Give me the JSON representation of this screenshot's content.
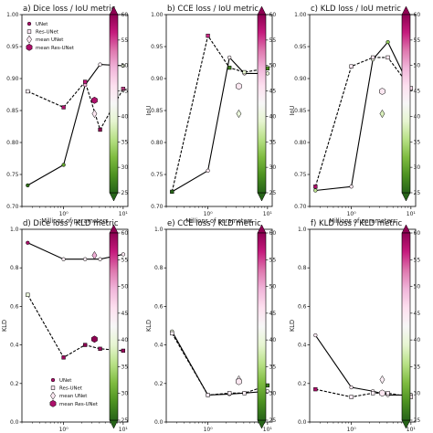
{
  "colorbar": {
    "ticks": [
      25,
      30,
      35,
      40,
      45,
      50,
      55,
      60
    ],
    "range": [
      25,
      60
    ],
    "colors_low_to_high": [
      "#276419",
      "#4d9221",
      "#7fbc41",
      "#b8e186",
      "#e6f5d0",
      "#f7f7f7",
      "#fde0ef",
      "#f1b6da",
      "#de77ae",
      "#c51b7d",
      "#8e0152"
    ]
  },
  "legend": {
    "entries": [
      "UNet",
      "Res-UNet",
      "mean UNet",
      "mean Res-UNet"
    ]
  },
  "chart_data": [
    {
      "type": "line",
      "title": "a) Dice loss / IoU metric",
      "xlabel": "Millions of parameters",
      "ylabel": "",
      "xscale": "log",
      "xlim": [
        0.2,
        12
      ],
      "ylim": [
        0.7,
        1.0
      ],
      "yticks": [
        "0.70",
        "0.75",
        "0.80",
        "0.85",
        "0.90",
        "0.95",
        "1.00"
      ],
      "xticks": [
        {
          "v": 1,
          "label": "10⁰"
        },
        {
          "v": 10,
          "label": "10¹"
        }
      ],
      "legend_placement": "top-left",
      "series": [
        {
          "name": "UNet",
          "style": "solid",
          "marker": "circle",
          "x": [
            0.25,
            1,
            2.3,
            4.1,
            10
          ],
          "y": [
            0.733,
            0.765,
            0.89,
            0.922,
            0.92
          ],
          "c": [
            26,
            30,
            50,
            44,
            40
          ]
        },
        {
          "name": "Res-UNet",
          "style": "dashed",
          "marker": "square",
          "x": [
            0.25,
            1,
            2.3,
            4.1,
            10
          ],
          "y": [
            0.88,
            0.855,
            0.895,
            0.82,
            0.884
          ],
          "c": [
            44,
            58,
            57,
            60,
            55
          ]
        },
        {
          "name": "mean UNet",
          "style": "none",
          "marker": "diamond",
          "x": [
            3.3
          ],
          "y": [
            0.845
          ],
          "c": [
            45
          ]
        },
        {
          "name": "mean Res-UNet",
          "style": "none",
          "marker": "hexagon",
          "x": [
            3.3
          ],
          "y": [
            0.866
          ],
          "c": [
            58
          ]
        }
      ]
    },
    {
      "type": "line",
      "title": "b) CCE loss / IoU metric",
      "xlabel": "Millions of parameters",
      "ylabel": "IoU",
      "xscale": "log",
      "xlim": [
        0.2,
        12
      ],
      "ylim": [
        0.7,
        1.0
      ],
      "yticks": [
        "0.70",
        "0.75",
        "0.80",
        "0.85",
        "0.90",
        "0.95",
        "1.00"
      ],
      "xticks": [
        {
          "v": 1,
          "label": "10⁰"
        },
        {
          "v": 10,
          "label": "10¹"
        }
      ],
      "series": [
        {
          "name": "UNet",
          "style": "solid",
          "marker": "circle",
          "x": [
            0.25,
            1,
            2.3,
            4.1,
            10
          ],
          "y": [
            0.723,
            0.756,
            0.933,
            0.908,
            0.908
          ],
          "c": [
            35,
            45,
            44,
            46,
            40
          ]
        },
        {
          "name": "Res-UNet",
          "style": "dashed",
          "marker": "square",
          "x": [
            0.25,
            1,
            2.3,
            4.1,
            10
          ],
          "y": [
            0.723,
            0.967,
            0.917,
            0.91,
            0.916
          ],
          "c": [
            25,
            56,
            27,
            39,
            28
          ]
        },
        {
          "name": "mean UNet",
          "style": "none",
          "marker": "diamond",
          "x": [
            3.3
          ],
          "y": [
            0.845
          ],
          "c": [
            40
          ]
        },
        {
          "name": "mean Res-UNet",
          "style": "none",
          "marker": "hexagon",
          "x": [
            3.3
          ],
          "y": [
            0.888
          ],
          "c": [
            45
          ]
        }
      ]
    },
    {
      "type": "line",
      "title": "c) KLD loss / IoU metric",
      "xlabel": "Millions of parameters",
      "ylabel": "IoU",
      "xscale": "log",
      "xlim": [
        0.2,
        12
      ],
      "ylim": [
        0.7,
        1.0
      ],
      "yticks": [
        "0.70",
        "0.75",
        "0.80",
        "0.85",
        "0.90",
        "0.95",
        "1.00"
      ],
      "xticks": [
        {
          "v": 1,
          "label": "10⁰"
        },
        {
          "v": 10,
          "label": "10¹"
        }
      ],
      "series": [
        {
          "name": "UNet",
          "style": "solid",
          "marker": "circle",
          "x": [
            0.25,
            1,
            2.3,
            4.1,
            10
          ],
          "y": [
            0.725,
            0.731,
            0.93,
            0.957,
            0.883
          ],
          "c": [
            36,
            45,
            40,
            33,
            43
          ]
        },
        {
          "name": "Res-UNet",
          "style": "dashed",
          "marker": "square",
          "x": [
            0.25,
            1,
            2.3,
            4.1,
            10
          ],
          "y": [
            0.731,
            0.919,
            0.933,
            0.933,
            0.885
          ],
          "c": [
            58,
            45,
            45,
            45,
            46
          ]
        },
        {
          "name": "mean UNet",
          "style": "none",
          "marker": "diamond",
          "x": [
            3.3
          ],
          "y": [
            0.845
          ],
          "c": [
            38
          ]
        },
        {
          "name": "mean Res-UNet",
          "style": "none",
          "marker": "hexagon",
          "x": [
            3.3
          ],
          "y": [
            0.88
          ],
          "c": [
            45
          ]
        }
      ]
    },
    {
      "type": "line",
      "title": "d) Dice loss / KLD metric",
      "xlabel": "Millions of parameters",
      "ylabel": "KLD",
      "xscale": "log",
      "xlim": [
        0.2,
        12
      ],
      "ylim": [
        0.0,
        1.0
      ],
      "yticks": [
        "0.0",
        "0.2",
        "0.4",
        "0.6",
        "0.8",
        "1.0"
      ],
      "xticks": [
        {
          "v": 1,
          "label": "10⁰"
        },
        {
          "v": 10,
          "label": "10¹"
        }
      ],
      "legend_placement": "lower-left",
      "series": [
        {
          "name": "UNet",
          "style": "solid",
          "marker": "circle",
          "x": [
            0.25,
            1,
            2.3,
            4.1,
            10
          ],
          "y": [
            0.93,
            0.845,
            0.845,
            0.845,
            0.87
          ],
          "c": [
            58,
            44,
            44,
            44,
            45
          ]
        },
        {
          "name": "Res-UNet",
          "style": "dashed",
          "marker": "square",
          "x": [
            0.25,
            1,
            2.3,
            4.1,
            10
          ],
          "y": [
            0.66,
            0.335,
            0.4,
            0.38,
            0.37
          ],
          "c": [
            40,
            59,
            60,
            59,
            59
          ]
        },
        {
          "name": "mean UNet",
          "style": "none",
          "marker": "diamond",
          "x": [
            3.3
          ],
          "y": [
            0.865
          ],
          "c": [
            50
          ]
        },
        {
          "name": "mean Res-UNet",
          "style": "none",
          "marker": "hexagon",
          "x": [
            3.3
          ],
          "y": [
            0.43
          ],
          "c": [
            60
          ]
        }
      ]
    },
    {
      "type": "line",
      "title": "e) CCE loss / KLD metric",
      "xlabel": "Millions of parameters",
      "ylabel": "KLD",
      "xscale": "log",
      "xlim": [
        0.2,
        12
      ],
      "ylim": [
        0.0,
        1.0
      ],
      "yticks": [
        "0.0",
        "0.2",
        "0.4",
        "0.6",
        "0.8",
        "1.0"
      ],
      "xticks": [
        {
          "v": 1,
          "label": "10⁰"
        },
        {
          "v": 10,
          "label": "10¹"
        }
      ],
      "series": [
        {
          "name": "UNet",
          "style": "solid",
          "marker": "circle",
          "x": [
            0.25,
            1,
            2.3,
            4.1,
            10
          ],
          "y": [
            0.47,
            0.14,
            0.145,
            0.15,
            0.16
          ],
          "c": [
            40,
            40,
            44,
            44,
            44
          ]
        },
        {
          "name": "Res-UNet",
          "style": "dashed",
          "marker": "square",
          "x": [
            0.25,
            1,
            2.3,
            4.1,
            10
          ],
          "y": [
            0.46,
            0.14,
            0.15,
            0.15,
            0.19
          ],
          "c": [
            44,
            45,
            44,
            44,
            27
          ]
        },
        {
          "name": "mean UNet",
          "style": "none",
          "marker": "diamond",
          "x": [
            3.3
          ],
          "y": [
            0.22
          ],
          "c": [
            44
          ]
        },
        {
          "name": "mean Res-UNet",
          "style": "none",
          "marker": "hexagon",
          "x": [
            3.3
          ],
          "y": [
            0.21
          ],
          "c": [
            45
          ]
        }
      ]
    },
    {
      "type": "line",
      "title": "f) KLD loss / KLD metric",
      "xlabel": "Millions of parameters",
      "ylabel": "KLD",
      "xscale": "log",
      "xlim": [
        0.2,
        12
      ],
      "ylim": [
        0.0,
        1.0
      ],
      "yticks": [
        "0.0",
        "0.2",
        "0.4",
        "0.6",
        "0.8",
        "1.0"
      ],
      "xticks": [
        {
          "v": 1,
          "label": "10⁰"
        },
        {
          "v": 10,
          "label": "10¹"
        }
      ],
      "series": [
        {
          "name": "UNet",
          "style": "solid",
          "marker": "circle",
          "x": [
            0.25,
            1,
            2.3,
            4.1,
            10
          ],
          "y": [
            0.45,
            0.18,
            0.16,
            0.14,
            0.14
          ],
          "c": [
            45,
            45,
            44,
            44,
            44
          ]
        },
        {
          "name": "Res-UNet",
          "style": "dashed",
          "marker": "square",
          "x": [
            0.25,
            1,
            2.3,
            4.1,
            10
          ],
          "y": [
            0.17,
            0.13,
            0.15,
            0.15,
            0.13
          ],
          "c": [
            58,
            45,
            44,
            45,
            45
          ]
        },
        {
          "name": "mean UNet",
          "style": "none",
          "marker": "diamond",
          "x": [
            3.3
          ],
          "y": [
            0.22
          ],
          "c": [
            44
          ]
        },
        {
          "name": "mean Res-UNet",
          "style": "none",
          "marker": "hexagon",
          "x": [
            3.3
          ],
          "y": [
            0.15
          ],
          "c": [
            45
          ]
        }
      ]
    }
  ]
}
